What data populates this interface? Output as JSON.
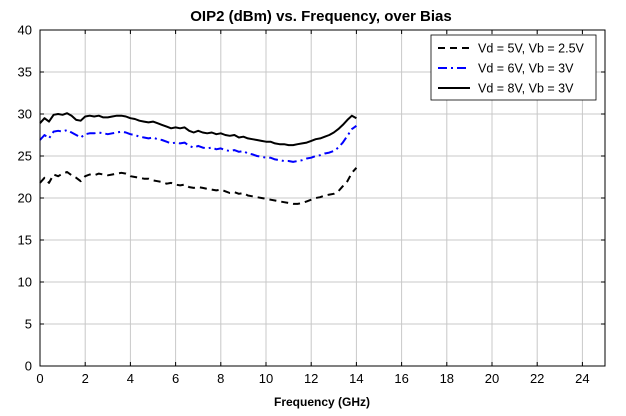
{
  "chart_data": {
    "type": "line",
    "title": "OIP2 (dBm) vs. Frequency, over Bias",
    "xlabel": "Frequency (GHz)",
    "ylabel": "",
    "xlim": [
      0,
      25
    ],
    "ylim": [
      0,
      40
    ],
    "xticks": [
      0,
      2,
      4,
      6,
      8,
      10,
      12,
      14,
      16,
      18,
      20,
      22,
      24
    ],
    "yticks": [
      0,
      5,
      10,
      15,
      20,
      25,
      30,
      35,
      40
    ],
    "grid": true,
    "legend_position": "top-right",
    "series": [
      {
        "name": "Vd = 5V, Vb = 2.5V",
        "color": "#000000",
        "style": "dashed",
        "x": [
          0,
          0.2,
          0.4,
          0.6,
          0.8,
          1.0,
          1.2,
          1.4,
          1.6,
          1.8,
          2.0,
          2.2,
          2.4,
          2.6,
          2.8,
          3.0,
          3.2,
          3.4,
          3.6,
          3.8,
          4.0,
          4.2,
          4.4,
          4.6,
          4.8,
          5.0,
          5.2,
          5.4,
          5.6,
          5.8,
          6.0,
          6.2,
          6.4,
          6.6,
          6.8,
          7.0,
          7.2,
          7.4,
          7.6,
          7.8,
          8.0,
          8.2,
          8.4,
          8.6,
          8.8,
          9.0,
          9.2,
          9.4,
          9.6,
          9.8,
          10.0,
          10.2,
          10.4,
          10.6,
          10.8,
          11.0,
          11.2,
          11.4,
          11.6,
          11.8,
          12.0,
          12.2,
          12.4,
          12.6,
          12.8,
          13.0,
          13.2,
          13.4,
          13.6,
          13.8,
          14.0
        ],
        "values": [
          21.8,
          22.4,
          21.8,
          22.8,
          22.6,
          22.9,
          23.1,
          22.7,
          22.4,
          22.0,
          22.6,
          22.8,
          22.7,
          22.9,
          22.8,
          22.7,
          22.8,
          22.9,
          23.0,
          22.9,
          22.6,
          22.5,
          22.4,
          22.3,
          22.3,
          22.1,
          22.0,
          21.9,
          21.7,
          21.8,
          21.6,
          21.5,
          21.6,
          21.3,
          21.2,
          21.3,
          21.2,
          21.1,
          21.0,
          20.9,
          21.0,
          20.8,
          20.6,
          20.7,
          20.5,
          20.6,
          20.3,
          20.2,
          20.1,
          20.0,
          19.9,
          19.8,
          19.7,
          19.6,
          19.5,
          19.4,
          19.3,
          19.3,
          19.4,
          19.6,
          19.8,
          20.0,
          20.1,
          20.3,
          20.4,
          20.5,
          20.8,
          21.4,
          22.0,
          23.0,
          23.6
        ]
      },
      {
        "name": "Vd = 6V, Vb = 3V",
        "color": "#0000ff",
        "style": "dashdot",
        "x": [
          0,
          0.2,
          0.4,
          0.6,
          0.8,
          1.0,
          1.2,
          1.4,
          1.6,
          1.8,
          2.0,
          2.2,
          2.4,
          2.6,
          2.8,
          3.0,
          3.2,
          3.4,
          3.6,
          3.8,
          4.0,
          4.2,
          4.4,
          4.6,
          4.8,
          5.0,
          5.2,
          5.4,
          5.6,
          5.8,
          6.0,
          6.2,
          6.4,
          6.6,
          6.8,
          7.0,
          7.2,
          7.4,
          7.6,
          7.8,
          8.0,
          8.2,
          8.4,
          8.6,
          8.8,
          9.0,
          9.2,
          9.4,
          9.6,
          9.8,
          10.0,
          10.2,
          10.4,
          10.6,
          10.8,
          11.0,
          11.2,
          11.4,
          11.6,
          11.8,
          12.0,
          12.2,
          12.4,
          12.6,
          12.8,
          13.0,
          13.2,
          13.4,
          13.6,
          13.8,
          14.0
        ],
        "values": [
          26.9,
          27.5,
          27.1,
          27.9,
          28.0,
          27.9,
          28.1,
          27.8,
          27.5,
          27.2,
          27.6,
          27.7,
          27.7,
          27.8,
          27.7,
          27.6,
          27.7,
          27.8,
          27.9,
          27.8,
          27.6,
          27.5,
          27.3,
          27.2,
          27.1,
          27.2,
          27.0,
          26.9,
          26.7,
          26.5,
          26.6,
          26.5,
          26.6,
          26.2,
          26.0,
          26.2,
          26.0,
          25.9,
          26.0,
          25.8,
          25.9,
          25.7,
          25.6,
          25.7,
          25.5,
          25.6,
          25.3,
          25.2,
          25.0,
          24.9,
          24.8,
          24.8,
          24.6,
          24.5,
          24.4,
          24.4,
          24.3,
          24.4,
          24.5,
          24.7,
          24.8,
          25.0,
          25.1,
          25.3,
          25.4,
          25.6,
          26.0,
          26.6,
          27.4,
          28.2,
          28.6
        ]
      },
      {
        "name": "Vd = 8V, Vb = 3V",
        "color": "#000000",
        "style": "solid",
        "x": [
          0,
          0.2,
          0.4,
          0.6,
          0.8,
          1.0,
          1.2,
          1.4,
          1.6,
          1.8,
          2.0,
          2.2,
          2.4,
          2.6,
          2.8,
          3.0,
          3.2,
          3.4,
          3.6,
          3.8,
          4.0,
          4.2,
          4.4,
          4.6,
          4.8,
          5.0,
          5.2,
          5.4,
          5.6,
          5.8,
          6.0,
          6.2,
          6.4,
          6.6,
          6.8,
          7.0,
          7.2,
          7.4,
          7.6,
          7.8,
          8.0,
          8.2,
          8.4,
          8.6,
          8.8,
          9.0,
          9.2,
          9.4,
          9.6,
          9.8,
          10.0,
          10.2,
          10.4,
          10.6,
          10.8,
          11.0,
          11.2,
          11.4,
          11.6,
          11.8,
          12.0,
          12.2,
          12.4,
          12.6,
          12.8,
          13.0,
          13.2,
          13.4,
          13.6,
          13.8,
          14.0
        ],
        "values": [
          28.9,
          29.5,
          29.1,
          29.9,
          30.0,
          29.9,
          30.1,
          29.8,
          29.3,
          29.2,
          29.7,
          29.8,
          29.7,
          29.8,
          29.6,
          29.6,
          29.7,
          29.8,
          29.8,
          29.7,
          29.5,
          29.4,
          29.2,
          29.1,
          29.0,
          29.1,
          28.9,
          28.7,
          28.5,
          28.3,
          28.4,
          28.3,
          28.4,
          28.0,
          27.8,
          28.0,
          27.8,
          27.7,
          27.8,
          27.6,
          27.7,
          27.5,
          27.4,
          27.5,
          27.2,
          27.3,
          27.1,
          27.0,
          26.9,
          26.8,
          26.7,
          26.7,
          26.5,
          26.4,
          26.4,
          26.3,
          26.3,
          26.4,
          26.5,
          26.6,
          26.8,
          27.0,
          27.1,
          27.3,
          27.5,
          27.8,
          28.2,
          28.7,
          29.3,
          29.8,
          29.5
        ]
      }
    ]
  }
}
